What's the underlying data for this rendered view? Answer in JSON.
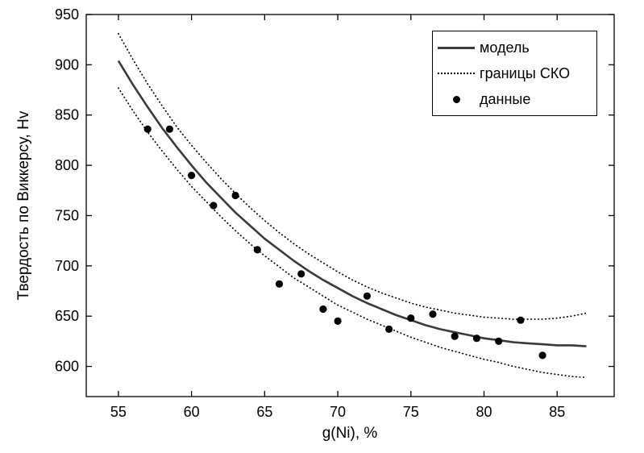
{
  "figure": {
    "background_color": "#ffffff",
    "axis_color": "#000000",
    "model_line_color": "#3a3a3a",
    "bound_line_color": "#000000",
    "marker_color": "#000000"
  },
  "chart_data": {
    "type": "line",
    "title": "",
    "xlabel": "g(Ni), %",
    "ylabel": "Твердость по Виккерсу, Hv",
    "xlim": [
      52.8,
      88.9
    ],
    "ylim": [
      570,
      950
    ],
    "x_ticks": [
      55,
      60,
      65,
      70,
      75,
      80,
      85
    ],
    "y_ticks": [
      600,
      650,
      700,
      750,
      800,
      850,
      900,
      950
    ],
    "grid": false,
    "legend": {
      "position": "top-right",
      "entries": [
        {
          "label": "модель",
          "style": "solid-line"
        },
        {
          "label": "границы СКО",
          "style": "dotted-line"
        },
        {
          "label": "данные",
          "style": "marker"
        }
      ]
    },
    "series": [
      {
        "key": "model-line",
        "name": "модель",
        "type": "line",
        "style": "solid",
        "color": "#3a3a3a",
        "width": 2.6,
        "x": [
          55,
          56,
          57,
          58,
          59,
          60,
          61,
          62,
          63,
          64,
          65,
          66,
          67,
          68,
          69,
          70,
          71,
          72,
          73,
          74,
          75,
          76,
          77,
          78,
          79,
          80,
          81,
          82,
          83,
          84,
          85,
          86,
          87
        ],
        "y": [
          904,
          880,
          858,
          837,
          818,
          800,
          783,
          768,
          753,
          740,
          727,
          716,
          705,
          695,
          686,
          678,
          670,
          663,
          657,
          651,
          646,
          641,
          637,
          634,
          631,
          628,
          626,
          624,
          623,
          622,
          621,
          621,
          620
        ]
      },
      {
        "key": "upper-bound-line",
        "name": "границы СКО (верхняя)",
        "type": "line",
        "style": "dotted",
        "color": "#000000",
        "width": 1.7,
        "x": [
          55,
          56,
          57,
          58,
          59,
          60,
          61,
          62,
          63,
          64,
          65,
          66,
          67,
          68,
          69,
          70,
          71,
          72,
          73,
          74,
          75,
          76,
          77,
          78,
          79,
          80,
          81,
          82,
          83,
          84,
          85,
          86,
          87
        ],
        "y": [
          931,
          905,
          881,
          859,
          838,
          820,
          803,
          787,
          772,
          758,
          745,
          733,
          722,
          712,
          703,
          694,
          686,
          679,
          673,
          668,
          663,
          659,
          656,
          653,
          651,
          649,
          648,
          647,
          647,
          647,
          648,
          650,
          653
        ]
      },
      {
        "key": "lower-bound-line",
        "name": "границы СКО (нижняя)",
        "type": "line",
        "style": "dotted",
        "color": "#000000",
        "width": 1.7,
        "x": [
          55,
          56,
          57,
          58,
          59,
          60,
          61,
          62,
          63,
          64,
          65,
          66,
          67,
          68,
          69,
          70,
          71,
          72,
          73,
          74,
          75,
          76,
          77,
          78,
          79,
          80,
          81,
          82,
          83,
          84,
          85,
          86,
          87
        ],
        "y": [
          877,
          854,
          833,
          814,
          796,
          779,
          764,
          749,
          735,
          722,
          710,
          699,
          688,
          679,
          670,
          661,
          654,
          647,
          641,
          635,
          629,
          624,
          619,
          615,
          611,
          607,
          604,
          600,
          597,
          594,
          592,
          590,
          589
        ]
      },
      {
        "key": "data-points",
        "name": "данные",
        "type": "scatter",
        "marker": "circle",
        "color": "#000000",
        "x": [
          57,
          58.5,
          60,
          61.5,
          63,
          64.5,
          66,
          67.5,
          69,
          70,
          72,
          73.5,
          75,
          76.5,
          78,
          79.5,
          81,
          82.5,
          84
        ],
        "y": [
          836,
          836,
          790,
          760,
          770,
          716,
          682,
          692,
          657,
          645,
          670,
          637,
          648,
          652,
          630,
          628,
          625,
          646,
          611
        ]
      }
    ]
  }
}
